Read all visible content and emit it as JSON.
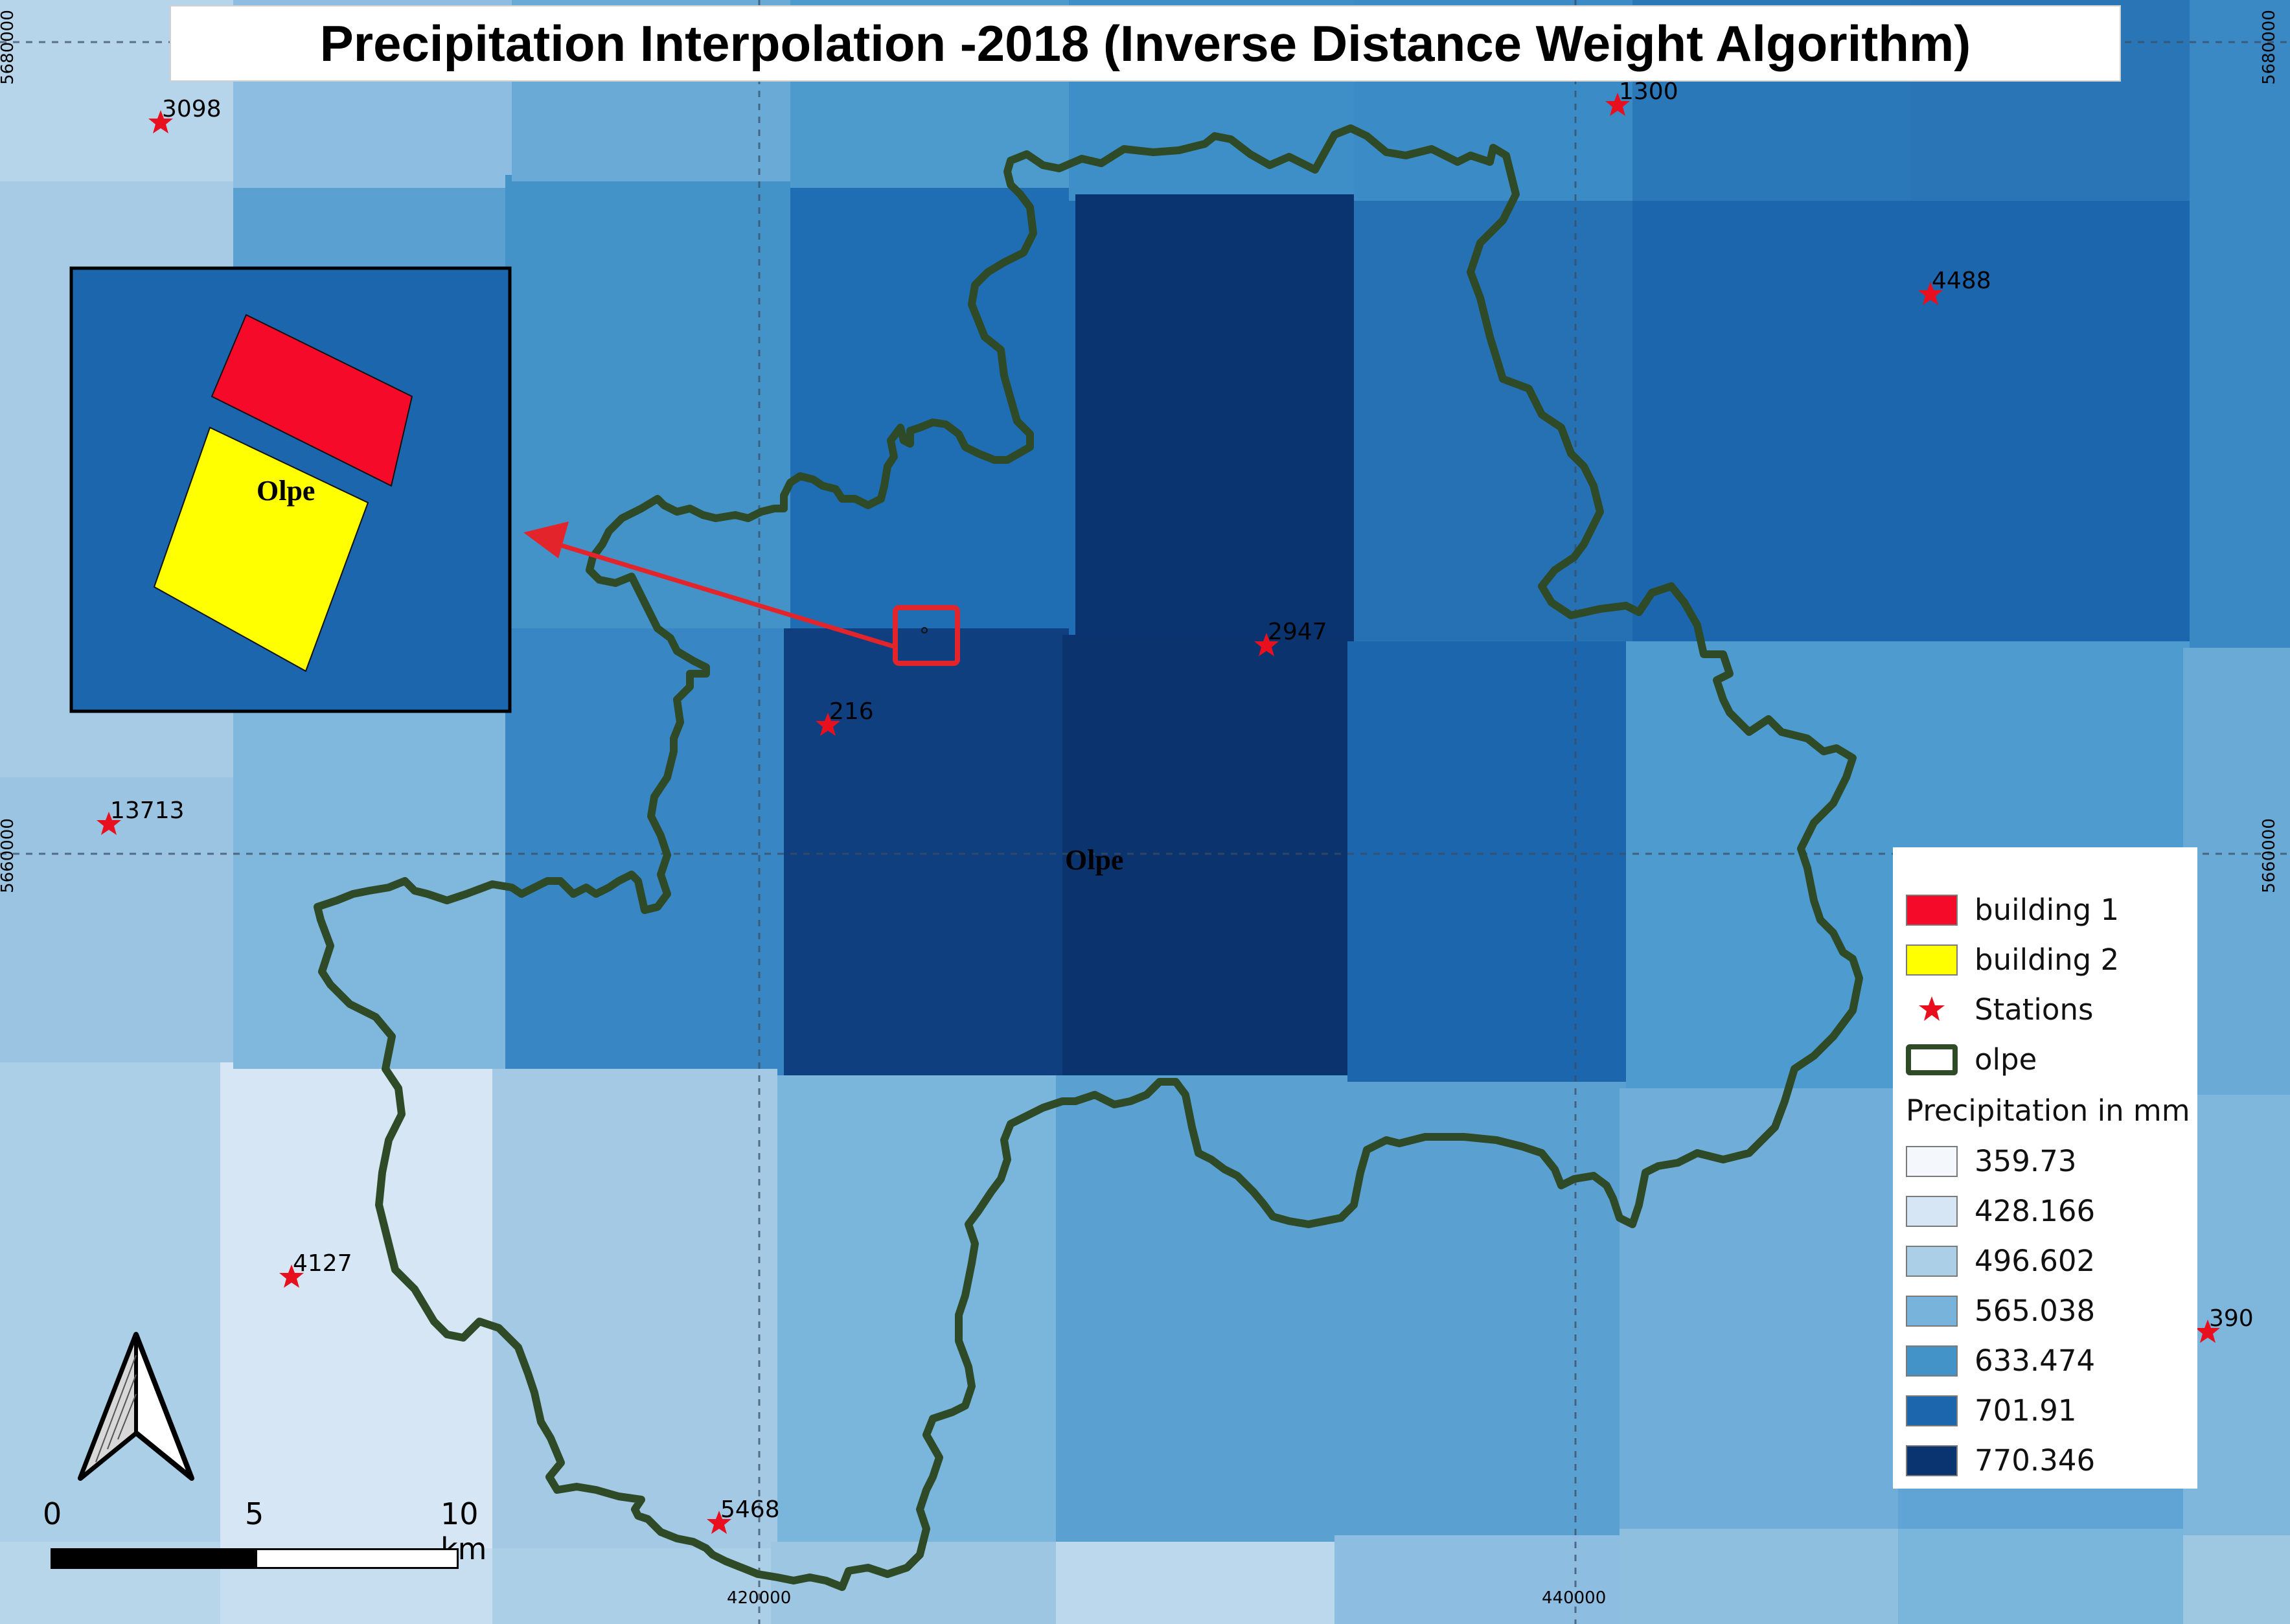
{
  "title": "Precipitation Interpolation -2018 (Inverse Distance Weight Algorithm)",
  "map_label": "Olpe",
  "inset_label": "Olpe",
  "grid": {
    "x_labels": [
      "420000",
      "440000"
    ],
    "y_labels": [
      "5680000",
      "5660000",
      "5680000",
      "5660000"
    ]
  },
  "stations": [
    {
      "id": "3098",
      "precip_class": 2
    },
    {
      "id": "1300",
      "precip_class": 4
    },
    {
      "id": "4488",
      "precip_class": 5
    },
    {
      "id": "2947",
      "precip_class": 6
    },
    {
      "id": "216",
      "precip_class": 6
    },
    {
      "id": "13713",
      "precip_class": 3
    },
    {
      "id": "4127",
      "precip_class": 1
    },
    {
      "id": "5468",
      "precip_class": 2
    },
    {
      "id": "390",
      "precip_class": 3
    }
  ],
  "legend": {
    "items": [
      {
        "label": "building 1",
        "color": "#f50a2a"
      },
      {
        "label": "building 2",
        "color": "#ffff00"
      },
      {
        "label": "Stations",
        "color": "#e8101e"
      },
      {
        "label": "olpe",
        "color": "#2e4a27"
      }
    ],
    "precip_title": "Precipitation in mm",
    "classes": [
      {
        "label": "359.73",
        "color": "#f4f8fc"
      },
      {
        "label": "428.166",
        "color": "#d6e6f4"
      },
      {
        "label": "496.602",
        "color": "#abcfe6"
      },
      {
        "label": "565.038",
        "color": "#78b3dc"
      },
      {
        "label": "633.474",
        "color": "#4393c8"
      },
      {
        "label": "701.91",
        "color": "#1c66ad"
      },
      {
        "label": "770.346",
        "color": "#0a3470"
      }
    ]
  },
  "scale_bar": {
    "labels": [
      "0",
      "5",
      "10 km"
    ]
  },
  "colors": {
    "boundary": "#2e4a27",
    "highlight": "#e3242b",
    "background_cell": "#1c66ad"
  }
}
